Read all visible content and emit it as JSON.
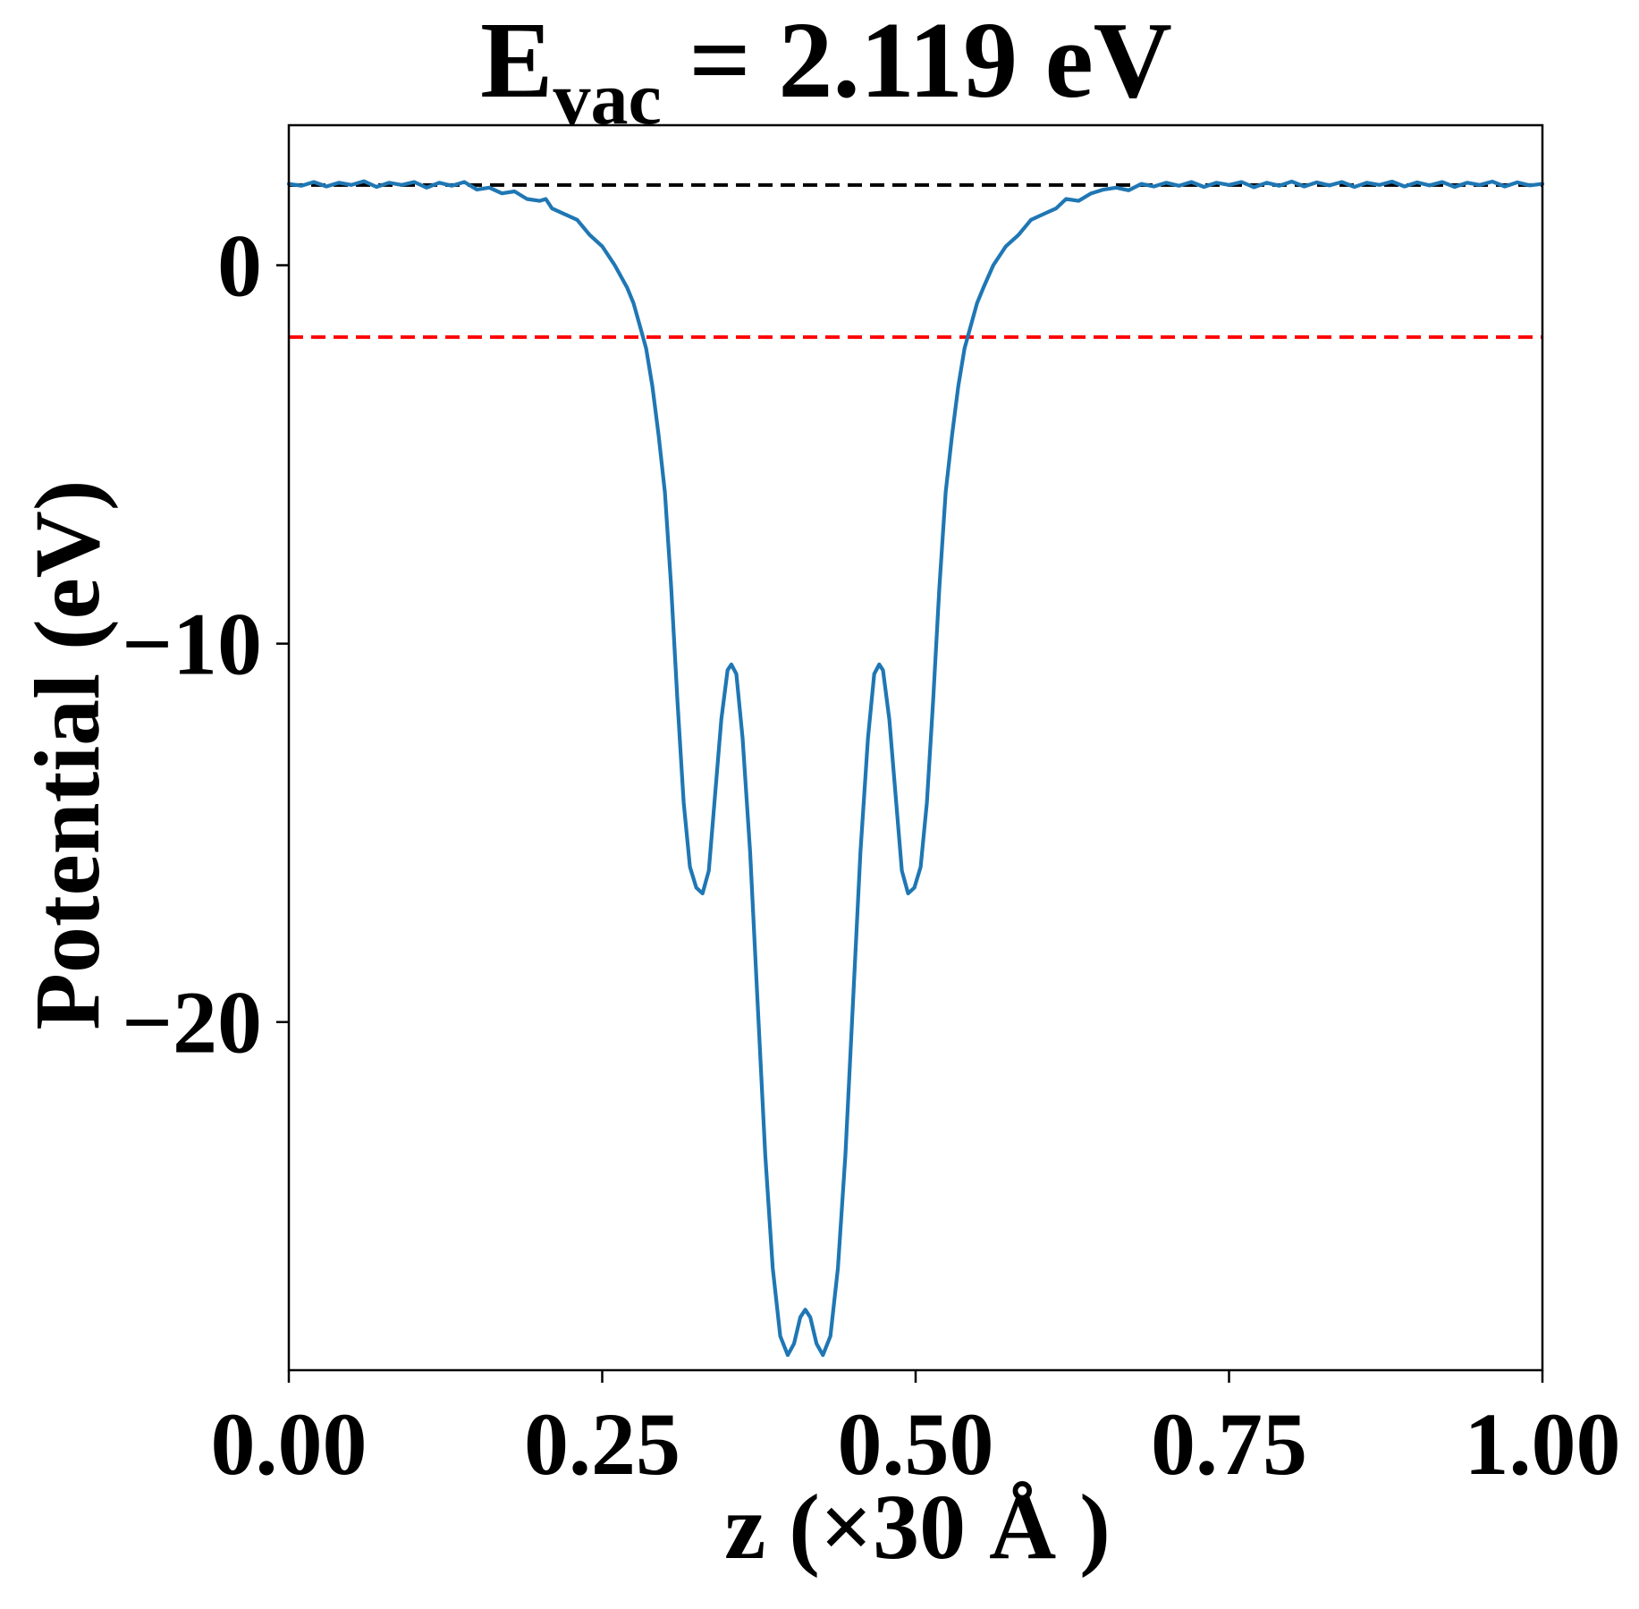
{
  "chart_data": {
    "type": "line",
    "title": {
      "prefix": "E",
      "subscript": "vac",
      "suffix": " = 2.119 eV"
    },
    "xlabel": "z (×30 Å )",
    "ylabel": "Potential (eV)",
    "xlim": [
      0.0,
      1.0
    ],
    "ylim": [
      -29.2,
      3.7
    ],
    "xticks": [
      0.0,
      0.25,
      0.5,
      0.75,
      1.0
    ],
    "xtick_labels": [
      "0.00",
      "0.25",
      "0.50",
      "0.75",
      "1.00"
    ],
    "yticks": [
      0,
      -10,
      -20
    ],
    "ytick_labels": [
      "0",
      "−10",
      "−20"
    ],
    "grid": false,
    "reference_lines": [
      {
        "value": 2.119,
        "color": "#000000",
        "style": "dashed"
      },
      {
        "value": -1.9,
        "color": "#ff0000",
        "style": "dashed"
      }
    ],
    "series": [
      {
        "color": "#1f77b4",
        "points": [
          [
            0.0,
            2.15
          ],
          [
            0.01,
            2.1
          ],
          [
            0.02,
            2.2
          ],
          [
            0.03,
            2.08
          ],
          [
            0.04,
            2.18
          ],
          [
            0.05,
            2.12
          ],
          [
            0.06,
            2.22
          ],
          [
            0.07,
            2.07
          ],
          [
            0.08,
            2.18
          ],
          [
            0.09,
            2.12
          ],
          [
            0.1,
            2.2
          ],
          [
            0.11,
            2.05
          ],
          [
            0.12,
            2.18
          ],
          [
            0.13,
            2.1
          ],
          [
            0.14,
            2.2
          ],
          [
            0.15,
            2.0
          ],
          [
            0.16,
            2.05
          ],
          [
            0.17,
            1.9
          ],
          [
            0.18,
            1.95
          ],
          [
            0.19,
            1.75
          ],
          [
            0.2,
            1.7
          ],
          [
            0.205,
            1.75
          ],
          [
            0.21,
            1.5
          ],
          [
            0.22,
            1.35
          ],
          [
            0.23,
            1.2
          ],
          [
            0.24,
            0.8
          ],
          [
            0.25,
            0.5
          ],
          [
            0.26,
            0.0
          ],
          [
            0.27,
            -0.6
          ],
          [
            0.275,
            -1.0
          ],
          [
            0.28,
            -1.6
          ],
          [
            0.285,
            -2.2
          ],
          [
            0.29,
            -3.2
          ],
          [
            0.295,
            -4.5
          ],
          [
            0.3,
            -6.0
          ],
          [
            0.305,
            -8.5
          ],
          [
            0.31,
            -11.5
          ],
          [
            0.315,
            -14.2
          ],
          [
            0.32,
            -15.9
          ],
          [
            0.325,
            -16.45
          ],
          [
            0.33,
            -16.6
          ],
          [
            0.335,
            -16.0
          ],
          [
            0.34,
            -14.0
          ],
          [
            0.345,
            -12.0
          ],
          [
            0.35,
            -10.7
          ],
          [
            0.353,
            -10.55
          ],
          [
            0.357,
            -10.8
          ],
          [
            0.362,
            -12.5
          ],
          [
            0.368,
            -15.5
          ],
          [
            0.374,
            -19.5
          ],
          [
            0.38,
            -23.5
          ],
          [
            0.386,
            -26.5
          ],
          [
            0.392,
            -28.3
          ],
          [
            0.398,
            -28.8
          ],
          [
            0.403,
            -28.5
          ],
          [
            0.408,
            -27.8
          ],
          [
            0.412,
            -27.6
          ],
          [
            0.416,
            -27.8
          ],
          [
            0.421,
            -28.5
          ],
          [
            0.426,
            -28.8
          ],
          [
            0.432,
            -28.3
          ],
          [
            0.438,
            -26.5
          ],
          [
            0.444,
            -23.5
          ],
          [
            0.45,
            -19.5
          ],
          [
            0.456,
            -15.5
          ],
          [
            0.462,
            -12.5
          ],
          [
            0.467,
            -10.8
          ],
          [
            0.471,
            -10.55
          ],
          [
            0.474,
            -10.7
          ],
          [
            0.479,
            -12.0
          ],
          [
            0.484,
            -14.0
          ],
          [
            0.489,
            -16.0
          ],
          [
            0.494,
            -16.6
          ],
          [
            0.499,
            -16.45
          ],
          [
            0.504,
            -15.9
          ],
          [
            0.509,
            -14.2
          ],
          [
            0.514,
            -11.5
          ],
          [
            0.519,
            -8.5
          ],
          [
            0.524,
            -6.0
          ],
          [
            0.529,
            -4.5
          ],
          [
            0.534,
            -3.2
          ],
          [
            0.539,
            -2.2
          ],
          [
            0.544,
            -1.6
          ],
          [
            0.549,
            -1.0
          ],
          [
            0.554,
            -0.6
          ],
          [
            0.562,
            0.0
          ],
          [
            0.572,
            0.5
          ],
          [
            0.582,
            0.8
          ],
          [
            0.592,
            1.2
          ],
          [
            0.602,
            1.35
          ],
          [
            0.612,
            1.5
          ],
          [
            0.62,
            1.75
          ],
          [
            0.63,
            1.7
          ],
          [
            0.64,
            1.9
          ],
          [
            0.65,
            2.0
          ],
          [
            0.66,
            2.05
          ],
          [
            0.67,
            1.98
          ],
          [
            0.68,
            2.15
          ],
          [
            0.69,
            2.08
          ],
          [
            0.7,
            2.18
          ],
          [
            0.71,
            2.1
          ],
          [
            0.72,
            2.2
          ],
          [
            0.73,
            2.07
          ],
          [
            0.74,
            2.18
          ],
          [
            0.75,
            2.12
          ],
          [
            0.76,
            2.2
          ],
          [
            0.77,
            2.06
          ],
          [
            0.78,
            2.18
          ],
          [
            0.79,
            2.1
          ],
          [
            0.8,
            2.21
          ],
          [
            0.81,
            2.08
          ],
          [
            0.82,
            2.19
          ],
          [
            0.83,
            2.11
          ],
          [
            0.84,
            2.2
          ],
          [
            0.85,
            2.07
          ],
          [
            0.86,
            2.18
          ],
          [
            0.87,
            2.12
          ],
          [
            0.88,
            2.21
          ],
          [
            0.89,
            2.08
          ],
          [
            0.9,
            2.19
          ],
          [
            0.91,
            2.11
          ],
          [
            0.92,
            2.2
          ],
          [
            0.93,
            2.07
          ],
          [
            0.94,
            2.18
          ],
          [
            0.95,
            2.12
          ],
          [
            0.96,
            2.21
          ],
          [
            0.97,
            2.08
          ],
          [
            0.98,
            2.19
          ],
          [
            0.99,
            2.11
          ],
          [
            1.0,
            2.15
          ]
        ]
      }
    ]
  }
}
